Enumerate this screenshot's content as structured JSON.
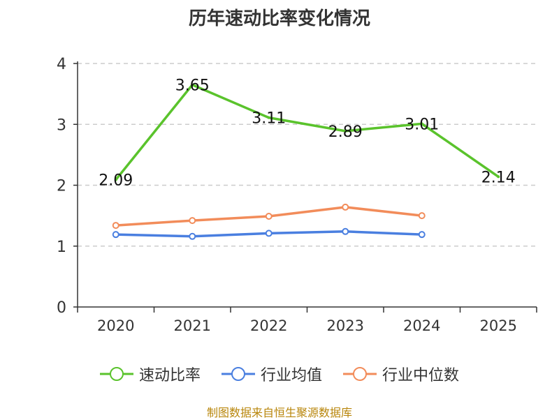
{
  "chart_data": {
    "type": "line",
    "title": "历年速动比率变化情况",
    "categories": [
      "2020",
      "2021",
      "2022",
      "2023",
      "2024",
      "2025"
    ],
    "ylim": [
      0,
      4
    ],
    "yticks": [
      0,
      1,
      2,
      3,
      4
    ],
    "grid": true,
    "legend_position": "bottom",
    "series": [
      {
        "name": "速动比率",
        "color": "#5ac32c",
        "values": [
          2.09,
          3.65,
          3.11,
          2.89,
          3.01,
          2.14
        ],
        "labels": [
          "2.09",
          "3.65",
          "3.11",
          "2.89",
          "3.01",
          "2.14"
        ],
        "show_labels": true
      },
      {
        "name": "行业均值",
        "color": "#4a7fe0",
        "values": [
          1.19,
          1.16,
          1.21,
          1.24,
          1.19,
          null
        ],
        "show_labels": false
      },
      {
        "name": "行业中位数",
        "color": "#f28c5a",
        "values": [
          1.34,
          1.42,
          1.49,
          1.64,
          1.5,
          null
        ],
        "show_labels": false
      }
    ]
  },
  "source": "制图数据来自恒生聚源数据库"
}
